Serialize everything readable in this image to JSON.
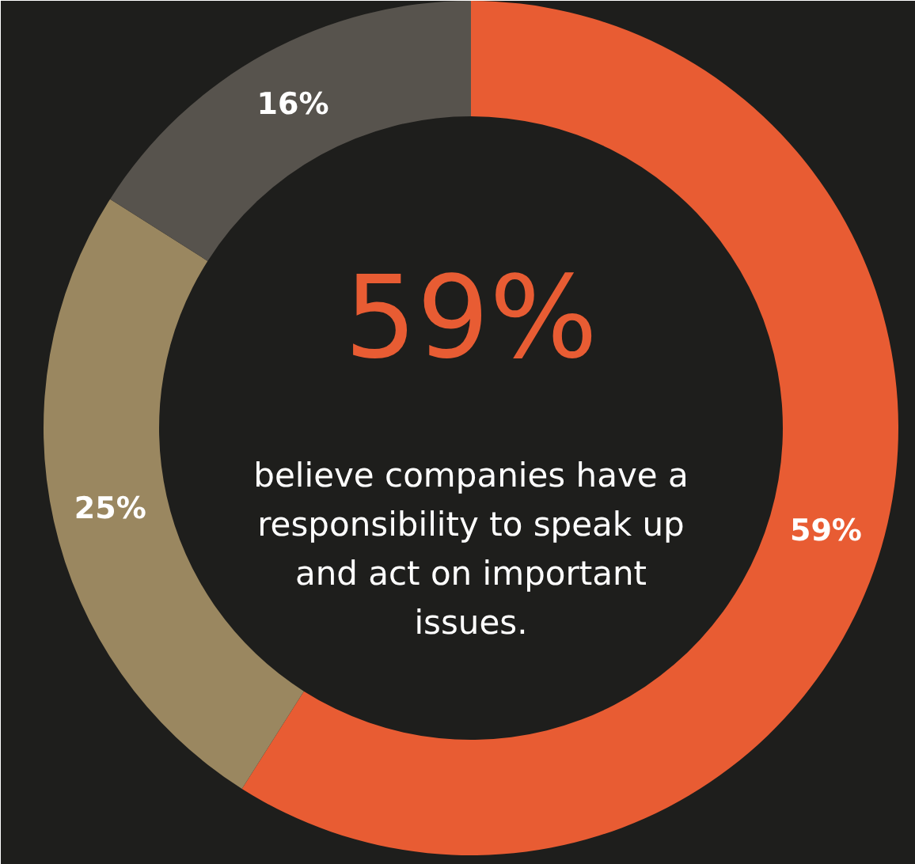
{
  "chart_data": {
    "type": "donut",
    "categories": [
      null,
      null,
      null
    ],
    "values": [
      59,
      25,
      16
    ],
    "colors": [
      "#e85c33",
      "#9a8760",
      "#57534d"
    ],
    "value_labels": [
      "59%",
      "25%",
      "16%"
    ],
    "annotations": [
      "59%",
      "believe companies have a responsibility to speak up and act on important issues."
    ]
  }
}
